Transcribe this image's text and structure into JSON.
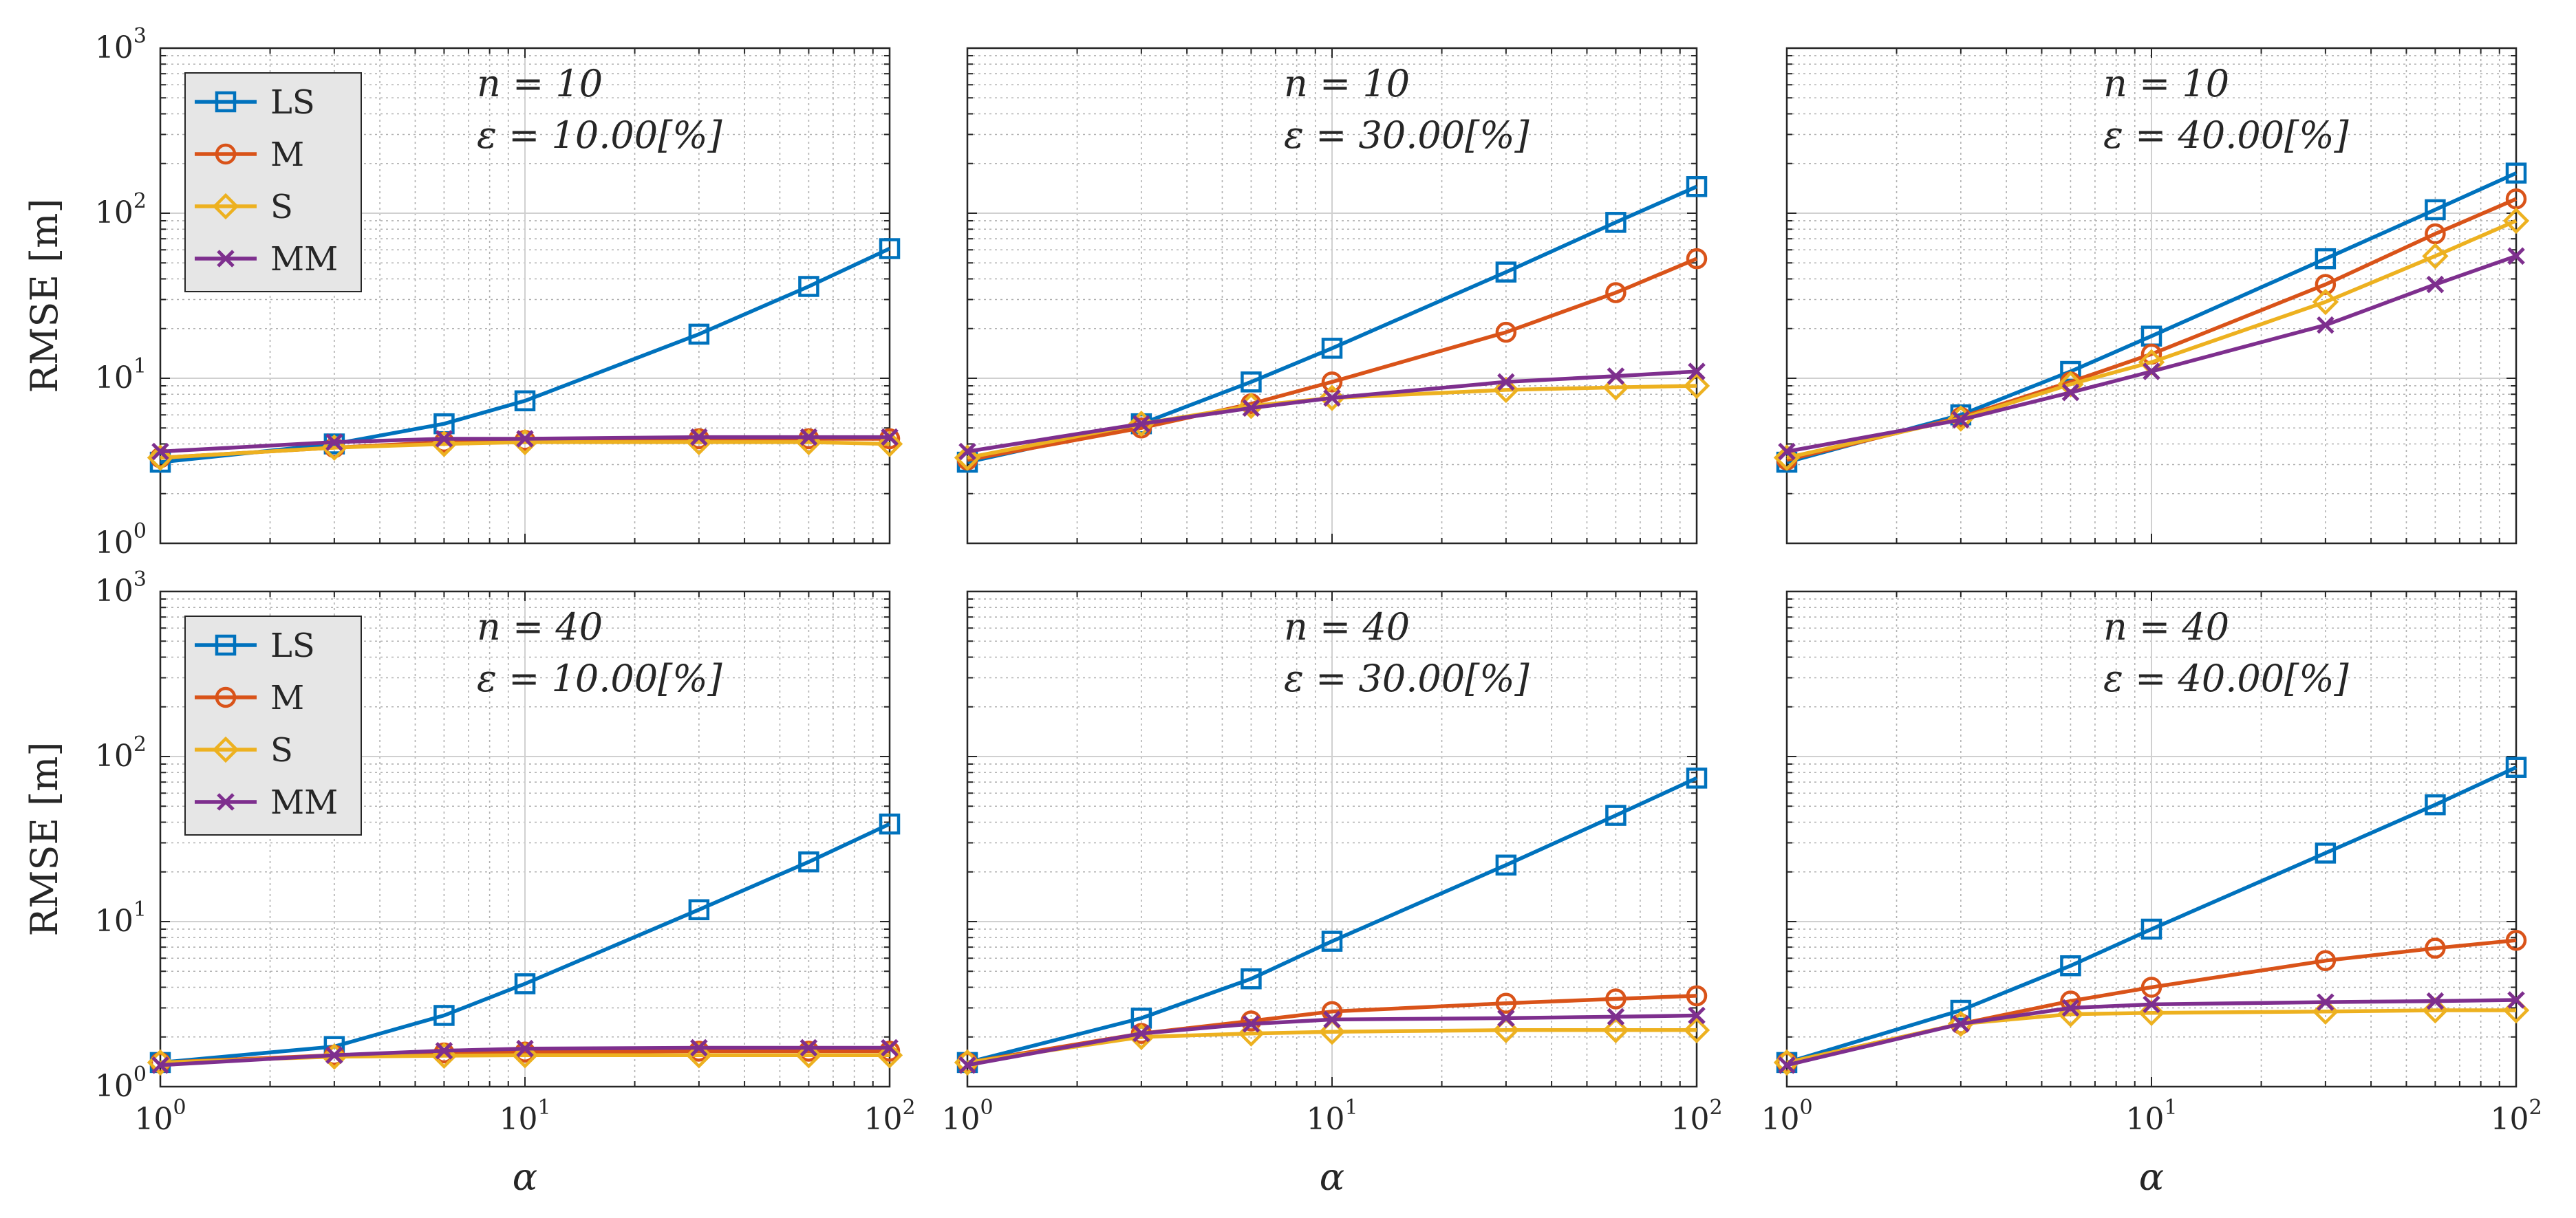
{
  "colors": {
    "LS": "#0072BD",
    "M": "#D95319",
    "S": "#EDB120",
    "MM": "#7E2F8E",
    "axis": "#262626",
    "grid": "#b0b0b0",
    "legend_bg": "#e6e6e6"
  },
  "chart_data": [
    {
      "type": "line",
      "panel": "row1-col1",
      "title_lines": {
        "n_label": "n = 10",
        "eps_label": "ε = 10.00[%]"
      },
      "xlabel": "",
      "ylabel": "RMSE [m]",
      "xscale": "log",
      "yscale": "log",
      "xlim": [
        1,
        100
      ],
      "ylim": [
        1,
        1000
      ],
      "grid": true,
      "x": [
        1,
        3,
        6,
        10,
        30,
        60,
        100
      ],
      "legend": {
        "visible": true,
        "location": "top-left",
        "entries": [
          "LS",
          "M",
          "S",
          "MM"
        ]
      },
      "series": [
        {
          "name": "LS",
          "marker": "square",
          "values": [
            3.1,
            4.0,
            5.3,
            7.3,
            18.5,
            36,
            61
          ]
        },
        {
          "name": "M",
          "marker": "circle",
          "values": [
            3.3,
            3.8,
            4.1,
            4.2,
            4.3,
            4.3,
            4.3
          ]
        },
        {
          "name": "S",
          "marker": "diamond",
          "values": [
            3.3,
            3.8,
            4.0,
            4.1,
            4.1,
            4.1,
            4.0
          ]
        },
        {
          "name": "MM",
          "marker": "x",
          "values": [
            3.6,
            4.1,
            4.3,
            4.3,
            4.4,
            4.4,
            4.4
          ]
        }
      ]
    },
    {
      "type": "line",
      "panel": "row1-col2",
      "title_lines": {
        "n_label": "n = 10",
        "eps_label": "ε = 30.00[%]"
      },
      "xlabel": "",
      "ylabel": "",
      "xscale": "log",
      "yscale": "log",
      "xlim": [
        1,
        100
      ],
      "ylim": [
        1,
        1000
      ],
      "grid": true,
      "x": [
        1,
        3,
        6,
        10,
        30,
        60,
        100
      ],
      "legend": {
        "visible": false,
        "location": "",
        "entries": []
      },
      "series": [
        {
          "name": "LS",
          "marker": "square",
          "values": [
            3.1,
            5.3,
            9.5,
            15.2,
            44,
            88,
            145
          ]
        },
        {
          "name": "M",
          "marker": "circle",
          "values": [
            3.2,
            5.0,
            7.0,
            9.5,
            19,
            33,
            53
          ]
        },
        {
          "name": "S",
          "marker": "diamond",
          "values": [
            3.3,
            5.3,
            6.8,
            7.6,
            8.5,
            8.8,
            9.0
          ]
        },
        {
          "name": "MM",
          "marker": "x",
          "values": [
            3.6,
            5.3,
            6.6,
            7.6,
            9.5,
            10.3,
            11
          ]
        }
      ]
    },
    {
      "type": "line",
      "panel": "row1-col3",
      "title_lines": {
        "n_label": "n = 10",
        "eps_label": "ε = 40.00[%]"
      },
      "xlabel": "",
      "ylabel": "",
      "xscale": "log",
      "yscale": "log",
      "xlim": [
        1,
        100
      ],
      "ylim": [
        1,
        1000
      ],
      "grid": true,
      "x": [
        1,
        3,
        6,
        10,
        30,
        60,
        100
      ],
      "legend": {
        "visible": false,
        "location": "",
        "entries": []
      },
      "series": [
        {
          "name": "LS",
          "marker": "square",
          "values": [
            3.1,
            6.0,
            11,
            18,
            53,
            105,
            175
          ]
        },
        {
          "name": "M",
          "marker": "circle",
          "values": [
            3.2,
            5.8,
            9.5,
            14,
            37,
            75,
            122
          ]
        },
        {
          "name": "S",
          "marker": "diamond",
          "values": [
            3.3,
            5.7,
            9.2,
            12.5,
            29,
            55,
            90
          ]
        },
        {
          "name": "MM",
          "marker": "x",
          "values": [
            3.6,
            5.6,
            8.2,
            11,
            21,
            37,
            55
          ]
        }
      ]
    },
    {
      "type": "line",
      "panel": "row2-col1",
      "title_lines": {
        "n_label": "n = 40",
        "eps_label": "ε = 10.00[%]"
      },
      "xlabel": "α",
      "ylabel": "RMSE [m]",
      "xscale": "log",
      "yscale": "log",
      "xlim": [
        1,
        100
      ],
      "ylim": [
        1,
        1000
      ],
      "grid": true,
      "x": [
        1,
        3,
        6,
        10,
        30,
        60,
        100
      ],
      "legend": {
        "visible": true,
        "location": "top-left",
        "entries": [
          "LS",
          "M",
          "S",
          "MM"
        ]
      },
      "series": [
        {
          "name": "LS",
          "marker": "square",
          "values": [
            1.4,
            1.75,
            2.7,
            4.2,
            11.8,
            23,
            39
          ]
        },
        {
          "name": "M",
          "marker": "circle",
          "values": [
            1.4,
            1.55,
            1.6,
            1.62,
            1.64,
            1.64,
            1.64
          ]
        },
        {
          "name": "S",
          "marker": "diamond",
          "values": [
            1.4,
            1.52,
            1.54,
            1.55,
            1.55,
            1.55,
            1.55
          ]
        },
        {
          "name": "MM",
          "marker": "x",
          "values": [
            1.35,
            1.55,
            1.65,
            1.7,
            1.72,
            1.72,
            1.72
          ]
        }
      ]
    },
    {
      "type": "line",
      "panel": "row2-col2",
      "title_lines": {
        "n_label": "n = 40",
        "eps_label": "ε = 30.00[%]"
      },
      "xlabel": "α",
      "ylabel": "",
      "xscale": "log",
      "yscale": "log",
      "xlim": [
        1,
        100
      ],
      "ylim": [
        1,
        1000
      ],
      "grid": true,
      "x": [
        1,
        3,
        6,
        10,
        30,
        60,
        100
      ],
      "legend": {
        "visible": false,
        "location": "",
        "entries": []
      },
      "series": [
        {
          "name": "LS",
          "marker": "square",
          "values": [
            1.4,
            2.6,
            4.5,
            7.6,
            22,
            44,
            74
          ]
        },
        {
          "name": "M",
          "marker": "circle",
          "values": [
            1.4,
            2.1,
            2.5,
            2.85,
            3.2,
            3.4,
            3.55
          ]
        },
        {
          "name": "S",
          "marker": "diamond",
          "values": [
            1.4,
            2.0,
            2.1,
            2.15,
            2.2,
            2.2,
            2.2
          ]
        },
        {
          "name": "MM",
          "marker": "x",
          "values": [
            1.35,
            2.1,
            2.4,
            2.55,
            2.6,
            2.65,
            2.7
          ]
        }
      ]
    },
    {
      "type": "line",
      "panel": "row2-col3",
      "title_lines": {
        "n_label": "n = 40",
        "eps_label": "ε = 40.00[%]"
      },
      "xlabel": "α",
      "ylabel": "",
      "xscale": "log",
      "yscale": "log",
      "xlim": [
        1,
        100
      ],
      "ylim": [
        1,
        1000
      ],
      "grid": true,
      "x": [
        1,
        3,
        6,
        10,
        30,
        60,
        100
      ],
      "legend": {
        "visible": false,
        "location": "",
        "entries": []
      },
      "series": [
        {
          "name": "LS",
          "marker": "square",
          "values": [
            1.4,
            2.9,
            5.4,
            9.0,
            26,
            51,
            86
          ]
        },
        {
          "name": "M",
          "marker": "circle",
          "values": [
            1.4,
            2.4,
            3.3,
            4.0,
            5.8,
            6.9,
            7.7
          ]
        },
        {
          "name": "S",
          "marker": "diamond",
          "values": [
            1.4,
            2.4,
            2.75,
            2.8,
            2.85,
            2.9,
            2.9
          ]
        },
        {
          "name": "MM",
          "marker": "x",
          "values": [
            1.35,
            2.4,
            3.0,
            3.15,
            3.25,
            3.3,
            3.35
          ]
        }
      ]
    }
  ]
}
